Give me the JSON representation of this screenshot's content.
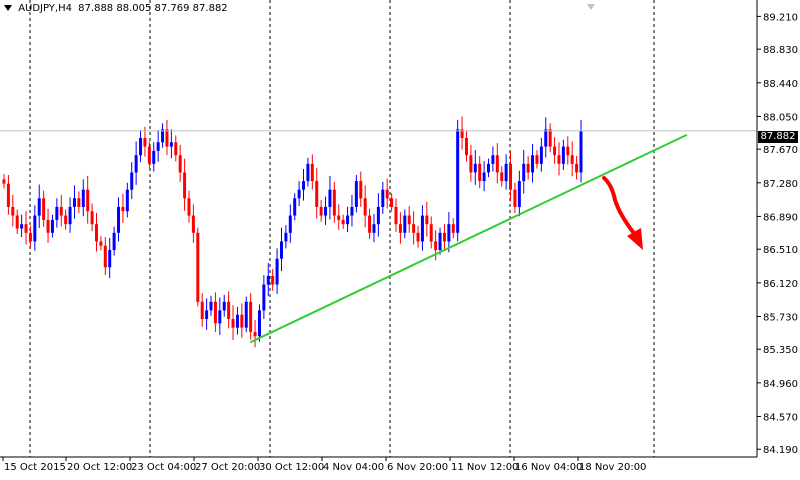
{
  "header": {
    "symbol": "AUDJPY,H4",
    "ohlc": "87.888 88.005 87.769 87.882",
    "dropdown_icon": "triangle-down-icon",
    "scroll_marker_icon": "shift-marker-icon"
  },
  "colors": {
    "background": "#ffffff",
    "bull": "#0000ff",
    "bear": "#ff0000",
    "grid": "#000000",
    "price_line": "#c0c0c0",
    "trendline": "#32cd32",
    "arrow": "#ff0000",
    "price_label_bg": "#000000",
    "price_label_text": "#ffffff"
  },
  "chart_data": {
    "type": "candlestick",
    "title": "AUDJPY,H4",
    "ylim": [
      84.1,
      89.4
    ],
    "y_ticks": [
      "89.210",
      "88.830",
      "88.440",
      "88.050",
      "87.670",
      "87.280",
      "86.890",
      "86.510",
      "86.120",
      "85.730",
      "85.350",
      "84.960",
      "84.570",
      "84.190"
    ],
    "x_tick_labels": [
      "15 Oct 2015",
      "20 Oct 12:00",
      "23 Oct 04:00",
      "27 Oct 20:00",
      "30 Oct 12:00",
      "4 Nov 04:00",
      "6 Nov 20:00",
      "11 Nov 12:00",
      "16 Nov 04:00",
      "18 Nov 20:00"
    ],
    "current_price": "87.882",
    "grid": "vertical dashed separators",
    "trendline": {
      "from": {
        "bar": 0.427,
        "price": 85.43
      },
      "to": {
        "bar": 1.0,
        "price": 88.0
      }
    },
    "closes": [
      87.27,
      87.0,
      86.9,
      86.75,
      86.8,
      86.7,
      86.6,
      86.9,
      87.1,
      86.85,
      86.7,
      86.85,
      87.0,
      86.9,
      86.8,
      87.0,
      87.1,
      87.0,
      87.2,
      86.95,
      86.8,
      86.6,
      86.55,
      86.3,
      86.5,
      86.7,
      87.0,
      86.95,
      87.2,
      87.4,
      87.6,
      87.8,
      87.7,
      87.5,
      87.65,
      87.75,
      87.9,
      87.7,
      87.75,
      87.6,
      87.4,
      87.1,
      86.9,
      86.7,
      85.9,
      85.7,
      85.8,
      85.9,
      85.65,
      85.8,
      85.9,
      85.7,
      85.6,
      85.75,
      85.6,
      85.9,
      85.55,
      85.5,
      85.8,
      86.1,
      86.2,
      86.1,
      86.4,
      86.6,
      86.7,
      86.9,
      87.1,
      87.2,
      87.3,
      87.5,
      87.3,
      87.0,
      86.9,
      87.0,
      87.2,
      86.9,
      86.85,
      86.8,
      86.9,
      87.0,
      87.3,
      87.1,
      86.9,
      86.7,
      86.8,
      87.0,
      87.2,
      87.1,
      87.0,
      86.8,
      86.7,
      86.9,
      86.8,
      86.7,
      86.6,
      86.9,
      86.8,
      86.6,
      86.5,
      86.7,
      86.6,
      86.8,
      86.7,
      87.9,
      87.8,
      87.6,
      87.4,
      87.5,
      87.3,
      87.4,
      87.5,
      87.6,
      87.4,
      87.3,
      87.5,
      87.2,
      87.0,
      87.3,
      87.5,
      87.4,
      87.6,
      87.5,
      87.7,
      87.9,
      87.7,
      87.6,
      87.5,
      87.7,
      87.6,
      87.5,
      87.4,
      87.88
    ]
  }
}
